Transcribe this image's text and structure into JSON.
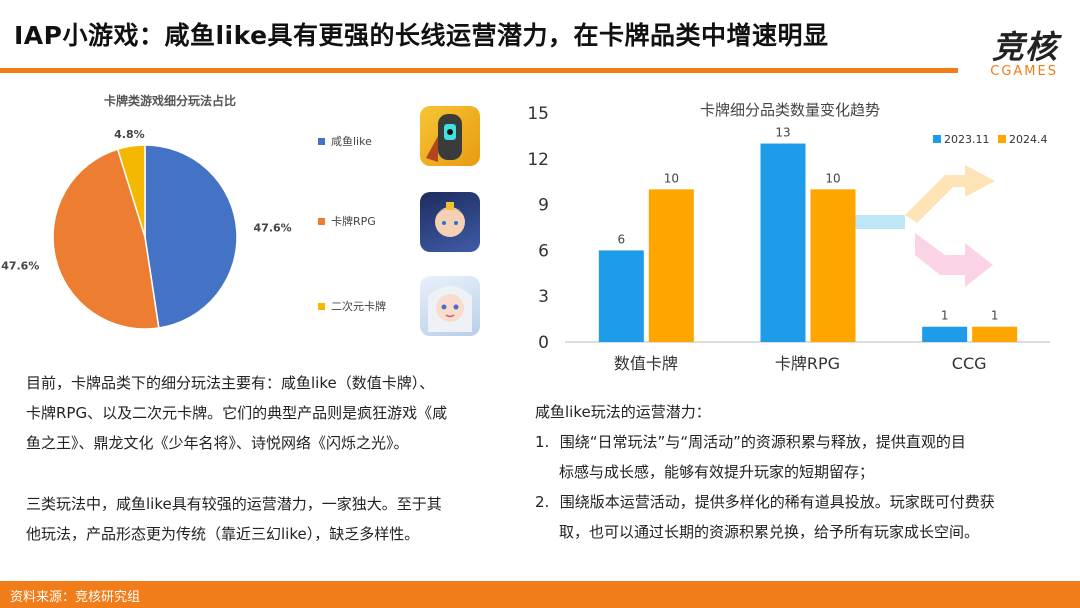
{
  "header": {
    "title": "IAP小游戏：咸鱼like具有更强的长线运营潜力，在卡牌品类中增速明显",
    "logo_main": "竞核",
    "logo_sub": "CGAMES"
  },
  "pie_chart": {
    "chart_data": {
      "type": "pie",
      "title": "卡牌类游戏细分玩法占比",
      "slices": [
        {
          "name": "咸鱼like",
          "value": 47.6,
          "label": "47.6%",
          "color": "#4472c4"
        },
        {
          "name": "卡牌RPG",
          "value": 47.6,
          "label": "47.6%",
          "color": "#ed7d31"
        },
        {
          "name": "二次元卡牌",
          "value": 4.8,
          "label": "4.8%",
          "color": "#f5b800"
        }
      ]
    }
  },
  "bar_chart": {
    "chart_data": {
      "type": "bar",
      "title": "卡牌细分品类数量变化趋势",
      "categories": [
        "数值卡牌",
        "卡牌RPG",
        "CCG"
      ],
      "series": [
        {
          "name": "2023.11",
          "values": [
            6,
            13,
            1
          ],
          "color": "#1e9be9"
        },
        {
          "name": "2024.4",
          "values": [
            10,
            10,
            1
          ],
          "color": "#ffa500"
        }
      ],
      "ylim": [
        0,
        15
      ],
      "yticks": [
        "0",
        "3",
        "6",
        "9",
        "12",
        "15"
      ],
      "legend_position": "top-right",
      "grid": false
    }
  },
  "left_text": {
    "p1": [
      "目前，卡牌品类下的细分玩法主要有：咸鱼like（数值卡牌）、",
      "卡牌RPG、以及二次元卡牌。它们的典型产品则是疯狂游戏《咸",
      "鱼之王》、鼎龙文化《少年名将》、诗悦网络《闪烁之光》。"
    ],
    "p2": [
      "三类玩法中，咸鱼like具有较强的运营潜力，一家独大。至于其",
      "他玩法，产品形态更为传统（靠近三幻like），缺乏多样性。"
    ]
  },
  "right_text": {
    "heading": "咸鱼like玩法的运营潜力：",
    "items": [
      {
        "num": "1.",
        "lines": [
          "围绕“日常玩法”与“周活动”的资源积累与释放，提供直观的目",
          "标感与成长感，能够有效提升玩家的短期留存；"
        ]
      },
      {
        "num": "2.",
        "lines": [
          "围绕版本运营活动，提供多样化的稀有道具投放。玩家既可付费获",
          "取，也可以通过长期的资源积累兑换，给予所有玩家成长空间。"
        ]
      }
    ]
  },
  "footer": {
    "source": "资料来源：竞核研究组"
  }
}
